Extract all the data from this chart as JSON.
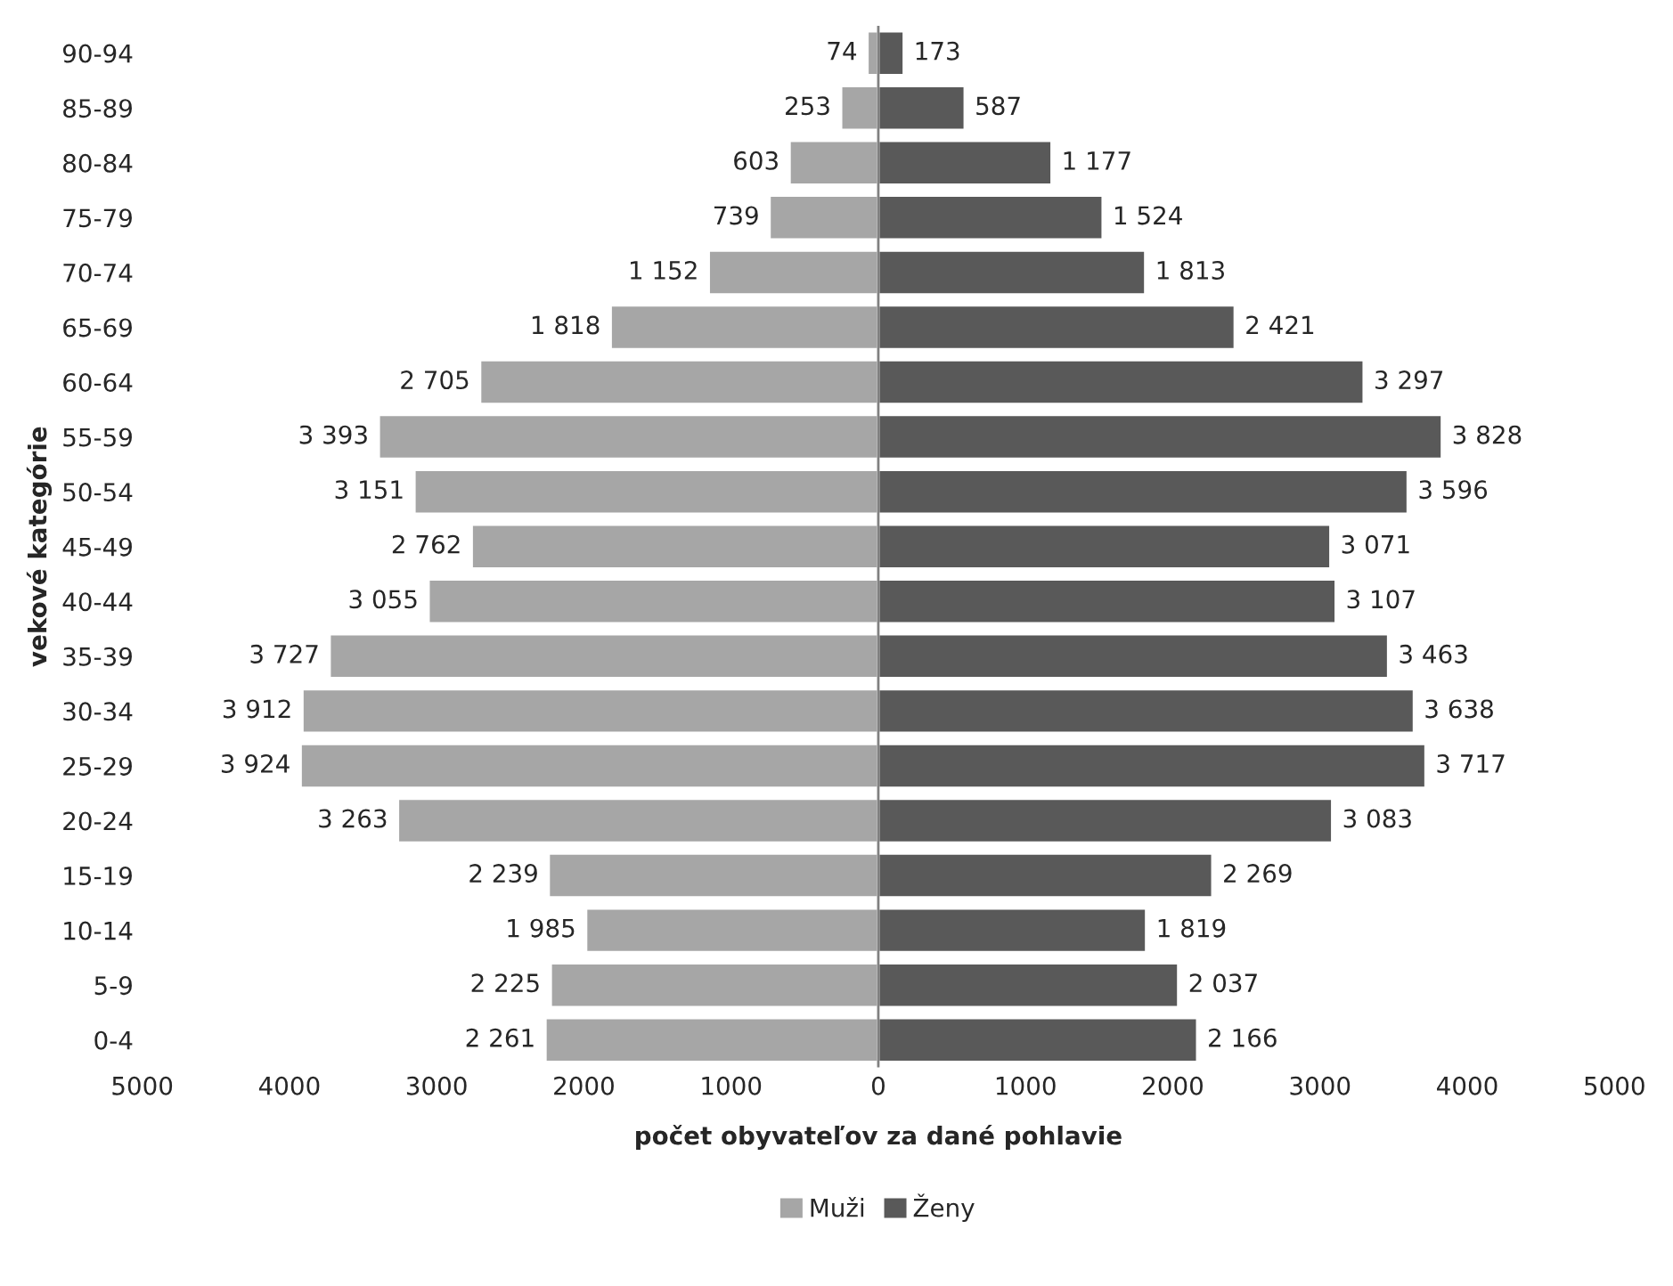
{
  "chart_data": {
    "type": "bar",
    "orientation": "horizontal",
    "xlabel": "počet obyvateľov za dané pohlavie",
    "ylabel": "vekové kategórie",
    "categories": [
      "90-94",
      "85-89",
      "80-84",
      "75-79",
      "70-74",
      "65-69",
      "60-64",
      "55-59",
      "50-54",
      "45-49",
      "40-44",
      "35-39",
      "30-34",
      "25-29",
      "20-24",
      "15-19",
      "10-14",
      "5-9",
      "0-4"
    ],
    "series": [
      {
        "name": "Muži",
        "color": "#a6a6a6",
        "values": [
          74,
          253,
          603,
          739,
          1152,
          1818,
          2705,
          3393,
          3151,
          2762,
          3055,
          3727,
          3912,
          3924,
          3263,
          2239,
          1985,
          2225,
          2261
        ],
        "base": [
          -74,
          -253,
          -603,
          -739,
          -1152,
          -1818,
          -2705,
          -3393,
          -3151,
          -2762,
          -3055,
          -3727,
          -3912,
          -3924,
          -3263,
          -2239,
          -1985,
          -2225,
          -2261
        ],
        "value_labels": [
          "74",
          "253",
          "603",
          "739",
          "1 152",
          "1 818",
          "2 705",
          "3 393",
          "3 151",
          "2 762",
          "3 055",
          "3 727",
          "3 912",
          "3 924",
          "3 263",
          "2 239",
          "1 985",
          "2 225",
          "2 261"
        ]
      },
      {
        "name": "Ženy",
        "color": "#595959",
        "values": [
          173,
          587,
          1177,
          1524,
          1813,
          2421,
          3297,
          3828,
          3596,
          3071,
          3107,
          3463,
          3638,
          3717,
          3083,
          2269,
          1819,
          2037,
          2166
        ],
        "value_labels": [
          "173",
          "587",
          "1 177",
          "1 524",
          "1 813",
          "2 421",
          "3 297",
          "3 828",
          "3 596",
          "3 071",
          "3 107",
          "3 463",
          "3 638",
          "3 717",
          "3 083",
          "2 269",
          "1 819",
          "2 037",
          "2 166"
        ]
      }
    ],
    "xlim": [
      -5000,
      5000
    ],
    "xticks": [
      {
        "value": -5000,
        "label": "5000"
      },
      {
        "value": -4000,
        "label": "4000"
      },
      {
        "value": -3000,
        "label": "3000"
      },
      {
        "value": -2000,
        "label": "2000"
      },
      {
        "value": -1000,
        "label": "1000"
      },
      0,
      1000,
      2000,
      3000,
      4000,
      5000
    ],
    "ref_lines": [
      {
        "axis": "x",
        "value": 0,
        "color": "#808080"
      }
    ],
    "grid": false,
    "legend": "bottom"
  }
}
